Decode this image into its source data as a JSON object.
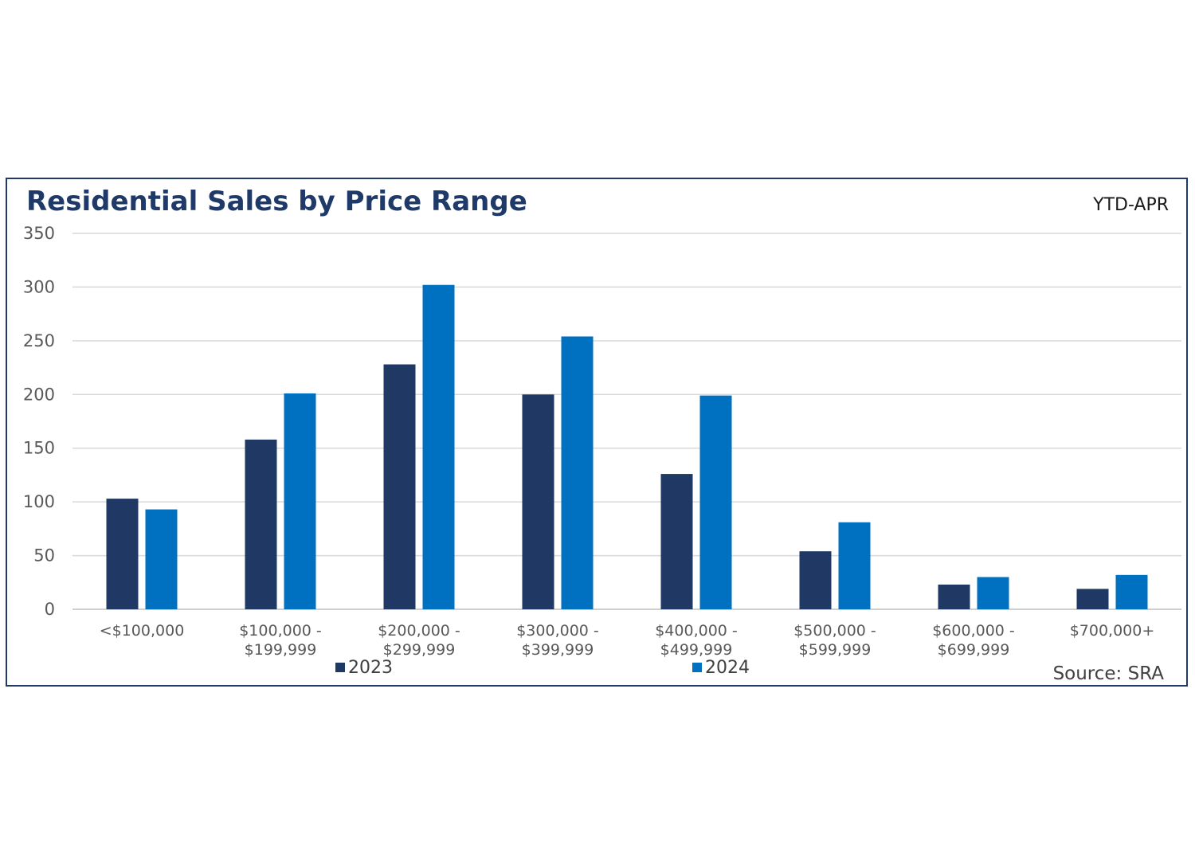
{
  "chart_data": {
    "type": "bar",
    "title": "Residential Sales by Price Range",
    "period": "YTD-APR",
    "source": "Source: SRA",
    "categories": [
      [
        "<$100,000"
      ],
      [
        "$100,000 -",
        "$199,999"
      ],
      [
        "$200,000 -",
        "$299,999"
      ],
      [
        "$300,000 -",
        "$399,999"
      ],
      [
        "$400,000 -",
        "$499,999"
      ],
      [
        "$500,000 -",
        "$599,999"
      ],
      [
        "$600,000 -",
        "$699,999"
      ],
      [
        "$700,000+"
      ]
    ],
    "series": [
      {
        "name": "2023",
        "color": "#203864",
        "values": [
          103,
          158,
          228,
          200,
          126,
          54,
          23,
          19
        ]
      },
      {
        "name": "2024",
        "color": "#0070c0",
        "values": [
          93,
          201,
          302,
          254,
          199,
          81,
          30,
          32
        ]
      }
    ],
    "ylim": [
      0,
      350
    ],
    "yticks": [
      0,
      50,
      100,
      150,
      200,
      250,
      300,
      350
    ],
    "grid": true,
    "legend_position": "bottom"
  }
}
